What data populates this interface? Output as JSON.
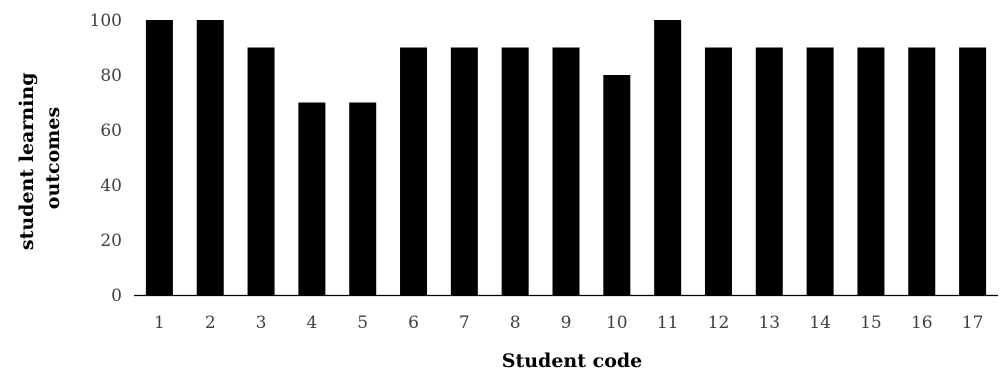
{
  "chart_data": {
    "type": "bar",
    "categories": [
      "1",
      "2",
      "3",
      "4",
      "5",
      "6",
      "7",
      "8",
      "9",
      "10",
      "11",
      "12",
      "13",
      "14",
      "15",
      "16",
      "17"
    ],
    "values": [
      100,
      100,
      90,
      70,
      70,
      90,
      90,
      90,
      90,
      80,
      100,
      90,
      90,
      90,
      90,
      90,
      90
    ],
    "xlabel": "Student code",
    "ylabel_lines": [
      "student learning",
      "outcomes"
    ],
    "ylim": [
      0,
      100
    ],
    "yticks": [
      0,
      20,
      40,
      60,
      80,
      100
    ],
    "grid": false,
    "legend": "none",
    "bar_color": "#000000",
    "axis_color": "#000000",
    "tick_label_color": "#404040"
  }
}
